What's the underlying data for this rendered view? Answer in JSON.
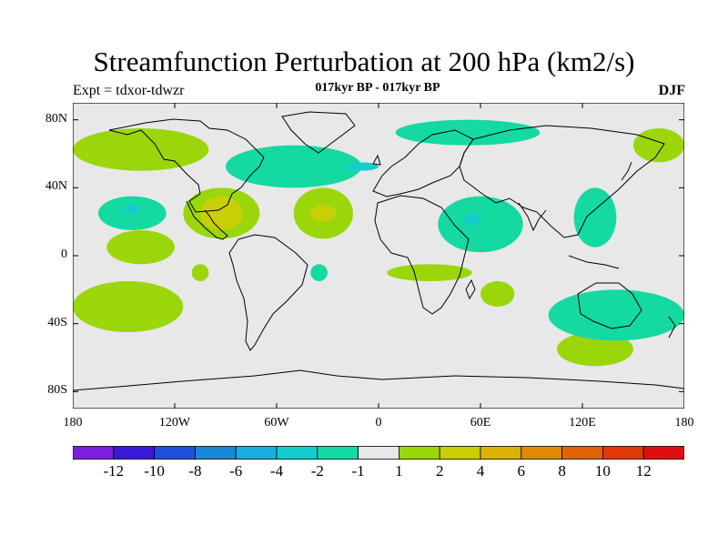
{
  "title": "Streamfunction Perturbation at 200 hPa (km2/s)",
  "subtitle": "017kyr BP - 017kyr BP",
  "experiment": "Expt = tdxor-tdwzr",
  "season": "DJF",
  "map": {
    "projection": "cylindrical-equidistant",
    "lon_range": [
      -180,
      180
    ],
    "lat_range": [
      -90,
      90
    ],
    "background_color": "#e8e8e8",
    "lat_ticks": [
      {
        "lat": 80,
        "label": "80N"
      },
      {
        "lat": 40,
        "label": "40N"
      },
      {
        "lat": 0,
        "label": "0"
      },
      {
        "lat": -40,
        "label": "40S"
      },
      {
        "lat": -80,
        "label": "80S"
      }
    ],
    "lon_ticks": [
      {
        "lon": -180,
        "label": "180"
      },
      {
        "lon": -120,
        "label": "120W"
      },
      {
        "lon": -60,
        "label": "60W"
      },
      {
        "lon": 0,
        "label": "0"
      },
      {
        "lon": 60,
        "label": "60E"
      },
      {
        "lon": 120,
        "label": "120E"
      },
      {
        "lon": 180,
        "label": "180"
      }
    ]
  },
  "colorbar": {
    "colors": [
      "#7a1fe0",
      "#3a18d8",
      "#1e50d8",
      "#1a86d8",
      "#17b0dc",
      "#13cdcd",
      "#14d9a0",
      "#e8e8e8",
      "#9ad60a",
      "#c8cf05",
      "#dcb005",
      "#e08a05",
      "#e06405",
      "#e0380a",
      "#e00f0f"
    ],
    "labels": [
      "-12",
      "-10",
      "-8",
      "-6",
      "-4",
      "-2",
      "-1",
      "1",
      "2",
      "4",
      "6",
      "8",
      "10",
      "12"
    ]
  },
  "anomaly_regions": [
    {
      "level": "1 to 2",
      "color": "#9ad60a",
      "lon_range": [
        -180,
        -100
      ],
      "lat_range": [
        50,
        75
      ]
    },
    {
      "level": "1 to 2",
      "color": "#9ad60a",
      "lon_range": [
        -160,
        -120
      ],
      "lat_range": [
        -5,
        15
      ]
    },
    {
      "level": "1 to 2",
      "color": "#9ad60a",
      "lon_range": [
        -115,
        -70
      ],
      "lat_range": [
        10,
        40
      ]
    },
    {
      "level": "2 to 4",
      "color": "#c8cf05",
      "lon_range": [
        -105,
        -80
      ],
      "lat_range": [
        15,
        35
      ]
    },
    {
      "level": "1 to 2",
      "color": "#9ad60a",
      "lon_range": [
        -50,
        -15
      ],
      "lat_range": [
        10,
        40
      ]
    },
    {
      "level": "2 to 4",
      "color": "#c8cf05",
      "lon_range": [
        -40,
        -25
      ],
      "lat_range": [
        20,
        30
      ]
    },
    {
      "level": "1 to 2",
      "color": "#9ad60a",
      "lon_range": [
        -180,
        -115
      ],
      "lat_range": [
        -45,
        -15
      ]
    },
    {
      "level": "1 to 2",
      "color": "#9ad60a",
      "lon_range": [
        5,
        55
      ],
      "lat_range": [
        -15,
        -5
      ]
    },
    {
      "level": "1 to 2",
      "color": "#9ad60a",
      "lon_range": [
        60,
        80
      ],
      "lat_range": [
        -30,
        -15
      ]
    },
    {
      "level": "1 to 2",
      "color": "#9ad60a",
      "lon_range": [
        105,
        150
      ],
      "lat_range": [
        -65,
        -45
      ]
    },
    {
      "level": "1 to 2",
      "color": "#9ad60a",
      "lon_range": [
        150,
        180
      ],
      "lat_range": [
        55,
        75
      ]
    },
    {
      "level": "-1 to -2",
      "color": "#14d9a0",
      "lon_range": [
        -90,
        -10
      ],
      "lat_range": [
        40,
        65
      ]
    },
    {
      "level": "-2 to -4",
      "color": "#13cdcd",
      "lon_range": [
        -20,
        0
      ],
      "lat_range": [
        50,
        55
      ]
    },
    {
      "level": "-1 to -2",
      "color": "#14d9a0",
      "lon_range": [
        10,
        95
      ],
      "lat_range": [
        65,
        80
      ]
    },
    {
      "level": "-1 to -2",
      "color": "#14d9a0",
      "lon_range": [
        -165,
        -125
      ],
      "lat_range": [
        15,
        35
      ]
    },
    {
      "level": "-2 to -4",
      "color": "#13cdcd",
      "lon_range": [
        -150,
        -140
      ],
      "lat_range": [
        25,
        30
      ]
    },
    {
      "level": "-1 to -2",
      "color": "#14d9a0",
      "lon_range": [
        35,
        85
      ],
      "lat_range": [
        2,
        35
      ]
    },
    {
      "level": "-2 to -4",
      "color": "#13cdcd",
      "lon_range": [
        50,
        60
      ],
      "lat_range": [
        18,
        25
      ]
    },
    {
      "level": "-1 to -2",
      "color": "#14d9a0",
      "lon_range": [
        115,
        140
      ],
      "lat_range": [
        5,
        40
      ]
    },
    {
      "level": "-1 to -2",
      "color": "#14d9a0",
      "lon_range": [
        100,
        180
      ],
      "lat_range": [
        -50,
        -20
      ]
    },
    {
      "level": "-1 to -2",
      "color": "#14d9a0",
      "lon_range": [
        -40,
        -30
      ],
      "lat_range": [
        -15,
        -5
      ]
    },
    {
      "level": "1 to 2",
      "color": "#9ad60a",
      "lon_range": [
        -110,
        -100
      ],
      "lat_range": [
        -15,
        -5
      ]
    }
  ]
}
